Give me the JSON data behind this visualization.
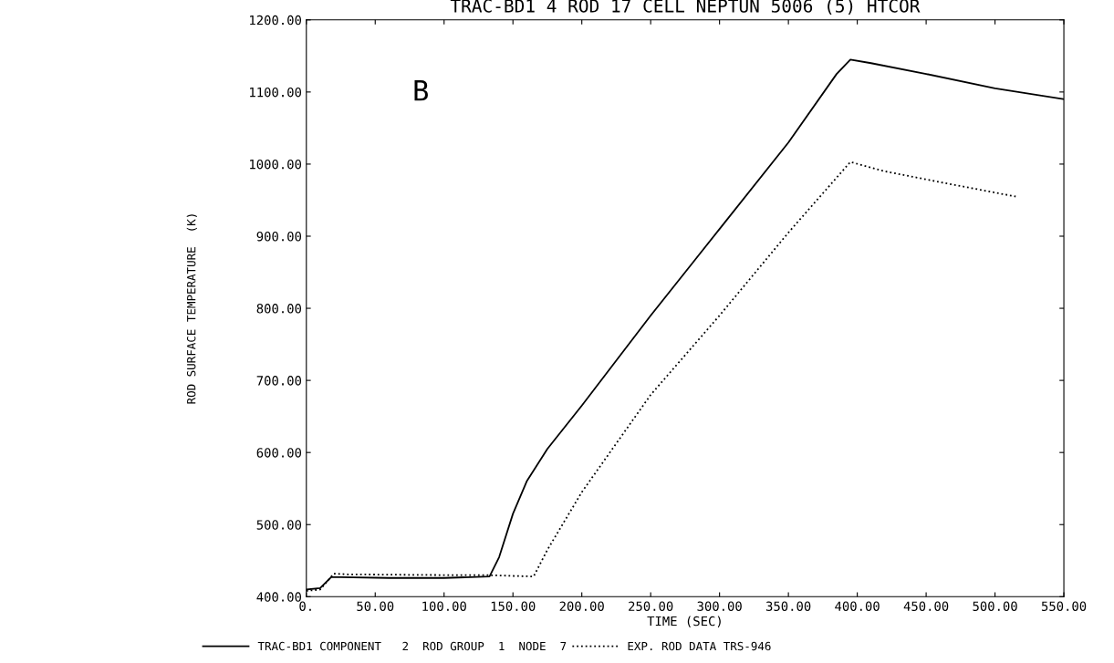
{
  "chart_data": {
    "type": "line",
    "title": "TRAC-BD1 4 ROD 17 CELL NEPTUN 5006 (5) HTCOR",
    "xlabel": "TIME (SEC)",
    "ylabel": "ROD SURFACE TEMPERATURE  (K)",
    "annotations": [
      "B"
    ],
    "legend": "bottom",
    "grid": false,
    "marker": "none",
    "xlim": [
      0,
      550
    ],
    "ylim": [
      400,
      1200
    ],
    "xticks": [
      {
        "value": 0,
        "label": "0."
      },
      {
        "value": 50,
        "label": "50.00"
      },
      {
        "value": 100,
        "label": "100.00"
      },
      {
        "value": 150,
        "label": "150.00"
      },
      {
        "value": 200,
        "label": "200.00"
      },
      {
        "value": 250,
        "label": "250.00"
      },
      {
        "value": 300,
        "label": "300.00"
      },
      {
        "value": 350,
        "label": "350.00"
      },
      {
        "value": 400,
        "label": "400.00"
      },
      {
        "value": 450,
        "label": "450.00"
      },
      {
        "value": 500,
        "label": "500.00"
      },
      {
        "value": 550,
        "label": "550.00"
      }
    ],
    "yticks": [
      {
        "value": 400,
        "label": "400.00"
      },
      {
        "value": 500,
        "label": "500.00"
      },
      {
        "value": 600,
        "label": "600.00"
      },
      {
        "value": 700,
        "label": "700.00"
      },
      {
        "value": 800,
        "label": "800.00"
      },
      {
        "value": 900,
        "label": "900.00"
      },
      {
        "value": 1000,
        "label": "1000.00"
      },
      {
        "value": 1100,
        "label": "1100.00"
      },
      {
        "value": 1200,
        "label": "1200.00"
      }
    ],
    "series": [
      {
        "name": "TRAC-BD1 COMPONENT   2  ROD GROUP  1  NODE  7",
        "color": "#000000",
        "line_style": "solid",
        "x": [
          0,
          10,
          18,
          25,
          60,
          100,
          133,
          140,
          150,
          160,
          175,
          200,
          250,
          300,
          350,
          385,
          395,
          410,
          450,
          500,
          550
        ],
        "values": [
          410,
          412,
          427,
          427,
          426,
          426,
          428,
          455,
          515,
          560,
          605,
          665,
          790,
          910,
          1030,
          1125,
          1145,
          1140,
          1125,
          1105,
          1090
        ]
      },
      {
        "name": "EXP. ROD DATA TRS-946",
        "color": "#000000",
        "line_style": "dotted",
        "x": [
          0,
          10,
          20,
          30,
          100,
          130,
          165,
          175,
          200,
          250,
          300,
          350,
          395,
          420,
          460,
          515
        ],
        "values": [
          408,
          410,
          432,
          431,
          430,
          430,
          428,
          465,
          545,
          680,
          790,
          905,
          1003,
          990,
          975,
          955
        ]
      }
    ]
  }
}
